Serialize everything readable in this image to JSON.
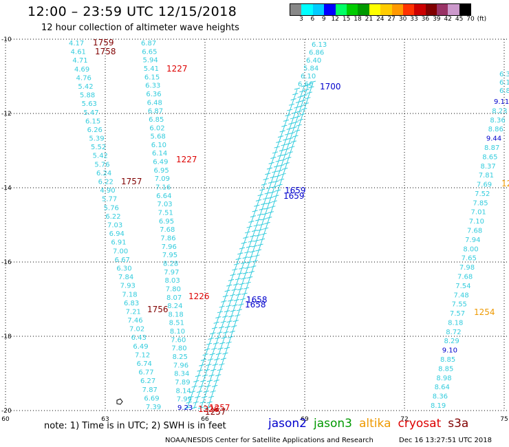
{
  "header": {
    "title": "12:00 – 23:59 UTC 12/15/2018",
    "subtitle": "12 hour collection of altimeter wave heights"
  },
  "legend": {
    "colors": [
      "#888888",
      "#00ffff",
      "#00ccff",
      "#0000ff",
      "#00ff66",
      "#00cc00",
      "#009900",
      "#ffff00",
      "#ffcc00",
      "#ff9900",
      "#ff3300",
      "#cc0000",
      "#800000",
      "#993366",
      "#cc99cc",
      "#000000"
    ],
    "labels": [
      "3",
      "6",
      "9",
      "12",
      "15",
      "18",
      "21",
      "24",
      "27",
      "30",
      "33",
      "36",
      "39",
      "42",
      "45",
      "70",
      "(ft)"
    ]
  },
  "axes": {
    "x_ticks": [
      "60",
      "63",
      "66",
      "69",
      "72",
      "75"
    ],
    "y_ticks": [
      "-10",
      "-12",
      "-14",
      "-16",
      "-18",
      "-20"
    ]
  },
  "colors": {
    "cyan": "#33ccdd",
    "blue": "#0000cc",
    "darkred": "#800000",
    "red": "#dd0000",
    "orange": "#ee9900",
    "green": "#009900"
  },
  "tracks": {
    "track_a": [
      "4.17",
      "4.61",
      "4.71",
      "4.69",
      "4.76",
      "5.42",
      "5.88",
      "5.63",
      "5.47",
      "6.15",
      "6.26",
      "5.39",
      "5.52",
      "5.42",
      "5.76",
      "6.24",
      "6.22",
      "4.90",
      "5.77",
      "5.76",
      "6.22",
      "7.03",
      "6.94",
      "6.91",
      "7.00",
      "6.67",
      "6.30",
      "7.84",
      "7.93",
      "7.18",
      "6.83",
      "7.21",
      "7.46",
      "7.02",
      "6.43",
      "6.49",
      "7.12",
      "6.74",
      "6.77",
      "6.27",
      "7.87",
      "6.69",
      "7.39"
    ],
    "track_b": [
      "6.87",
      "6.65",
      "5.94",
      "5.41",
      "6.15",
      "6.33",
      "6.36",
      "6.48",
      "6.87",
      "6.85",
      "6.02",
      "5.68",
      "6.10",
      "6.14",
      "6.49",
      "6.95",
      "7.09",
      "7.16",
      "6.64",
      "7.03",
      "7.51",
      "6.95",
      "7.68",
      "7.86",
      "7.96",
      "7.95",
      "8.28",
      "7.97",
      "8.03",
      "7.80",
      "8.07",
      "8.24",
      "8.18",
      "8.51",
      "8.10",
      "7.60",
      "7.80",
      "8.25",
      "7.96",
      "8.34",
      "7.89",
      "8.14",
      "7.99",
      "9.23"
    ],
    "track_d_top": [
      "6.13",
      "6.86",
      "6.40",
      "5.84",
      "6.10",
      "6.66"
    ],
    "track_e": [
      "9.11",
      "8.23",
      "8.36",
      "8.86",
      "9.44",
      "8.87",
      "8.65",
      "8.37",
      "7.81",
      "7.69",
      "7.52",
      "7.85",
      "7.01",
      "7.10",
      "7.68",
      "7.94",
      "8.00",
      "7.65",
      "7.98",
      "7.68",
      "7.54",
      "7.48",
      "7.55",
      "7.57",
      "8.18",
      "8.72",
      "8.29",
      "9.10",
      "8.85",
      "8.85",
      "8.98",
      "8.64",
      "8.36",
      "8.19"
    ],
    "track_e_top": [
      "6.3",
      "6.1",
      "6.8"
    ]
  },
  "times": {
    "t1759": "1759",
    "t1758": "1758",
    "t1227a": "1227",
    "t1227b": "1227",
    "t1757": "1757",
    "t1226": "1226",
    "t1756": "1756",
    "t1700": "1700",
    "t1659a": "1659",
    "t1659b": "1659",
    "t1658a": "1658",
    "t1658b": "1658",
    "t1254": "1254",
    "t1257": "1257",
    "t1257b": "1257",
    "t1226b": "1226",
    "t12": "12"
  },
  "footer": {
    "note": "note:  1) Time is in UTC;  2) SWH is in feet",
    "satellites": [
      {
        "name": "jason2",
        "color": "#0000cc"
      },
      {
        "name": "jason3",
        "color": "#009900"
      },
      {
        "name": "altika",
        "color": "#ee9900"
      },
      {
        "name": "cryosat",
        "color": "#dd0000"
      },
      {
        "name": "s3a",
        "color": "#800000"
      }
    ],
    "credit": "NOAA/NESDIS Center for Satellite Applications and Research",
    "timestamp": "Dec 16 13:27:51 UTC 2018"
  }
}
